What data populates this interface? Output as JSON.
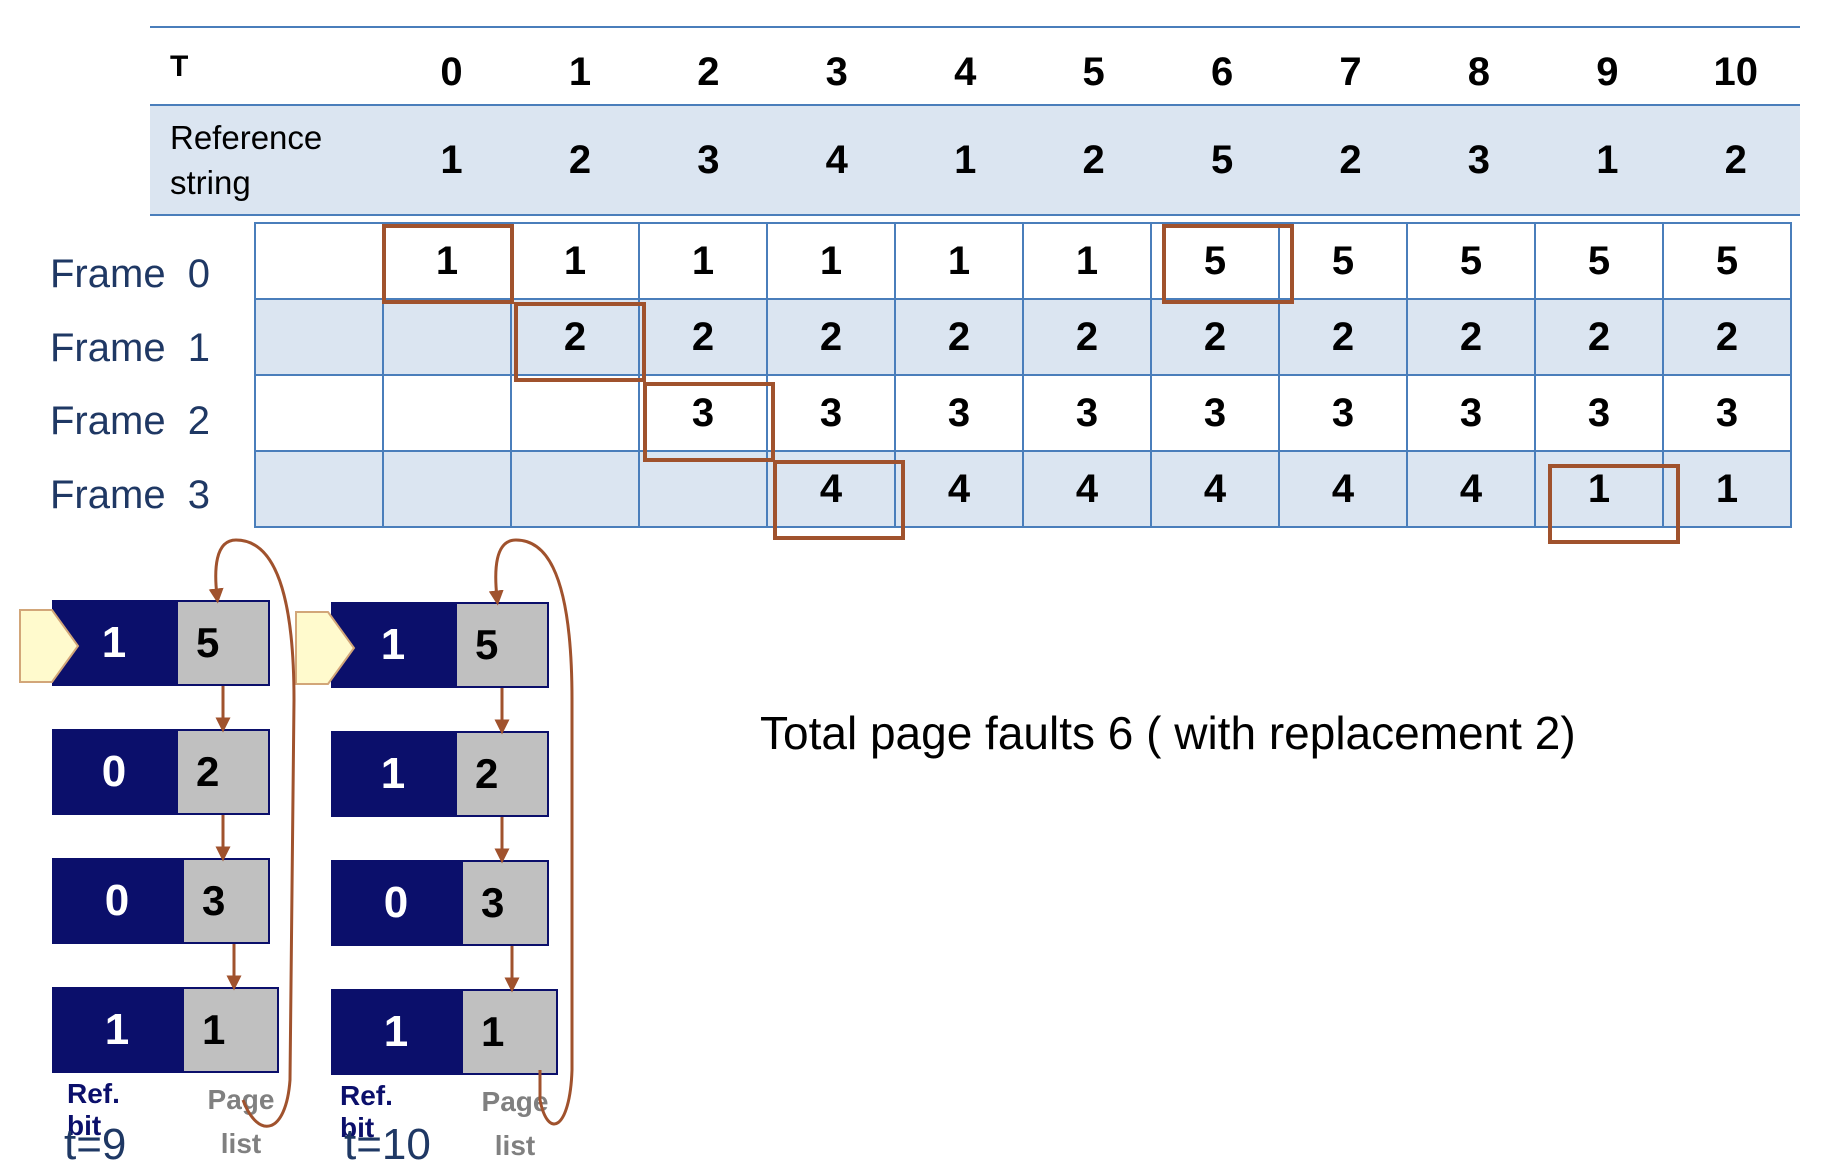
{
  "table": {
    "t_label": "T",
    "t_values": [
      "0",
      "1",
      "2",
      "3",
      "4",
      "5",
      "6",
      "7",
      "8",
      "9",
      "10"
    ],
    "ref_label_line1": "Reference",
    "ref_label_line2": "string",
    "ref_values": [
      "1",
      "2",
      "3",
      "4",
      "1",
      "2",
      "5",
      "2",
      "3",
      "1",
      "2"
    ]
  },
  "frames": [
    {
      "label": "Frame  0",
      "cells": [
        "",
        "1",
        "1",
        "1",
        "1",
        "1",
        "1",
        "5",
        "5",
        "5",
        "5",
        "5"
      ]
    },
    {
      "label": "Frame  1",
      "cells": [
        "",
        "",
        "2",
        "2",
        "2",
        "2",
        "2",
        "2",
        "2",
        "2",
        "2",
        "2"
      ]
    },
    {
      "label": "Frame  2",
      "cells": [
        "",
        "",
        "",
        "3",
        "3",
        "3",
        "3",
        "3",
        "3",
        "3",
        "3",
        "3"
      ]
    },
    {
      "label": "Frame  3",
      "cells": [
        "",
        "",
        "",
        "",
        "4",
        "4",
        "4",
        "4",
        "4",
        "4",
        "1",
        "1"
      ]
    }
  ],
  "clock_t9": {
    "time_label": "t=9",
    "ref_bit_caption": "Ref. bit",
    "page_caption_line1": "Page",
    "page_caption_line2": "list",
    "entries": [
      {
        "bit": "1",
        "page": "5"
      },
      {
        "bit": "0",
        "page": "2"
      },
      {
        "bit": "0",
        "page": "3"
      },
      {
        "bit": "1",
        "page": "1"
      }
    ]
  },
  "clock_t10": {
    "time_label": "t=10",
    "ref_bit_caption": "Ref. bit",
    "page_caption_line1": "Page",
    "page_caption_line2": "list",
    "entries": [
      {
        "bit": "1",
        "page": "5"
      },
      {
        "bit": "1",
        "page": "2"
      },
      {
        "bit": "0",
        "page": "3"
      },
      {
        "bit": "1",
        "page": "1"
      }
    ]
  },
  "summary": "Total page faults 6 ( with replacement 2)",
  "colors": {
    "highlight": "#a0522d",
    "grid_line": "#4a7ebb",
    "row_shade": "#dbe5f1",
    "bit_bg": "#0b0f6b",
    "page_bg": "#c0c0c0"
  }
}
